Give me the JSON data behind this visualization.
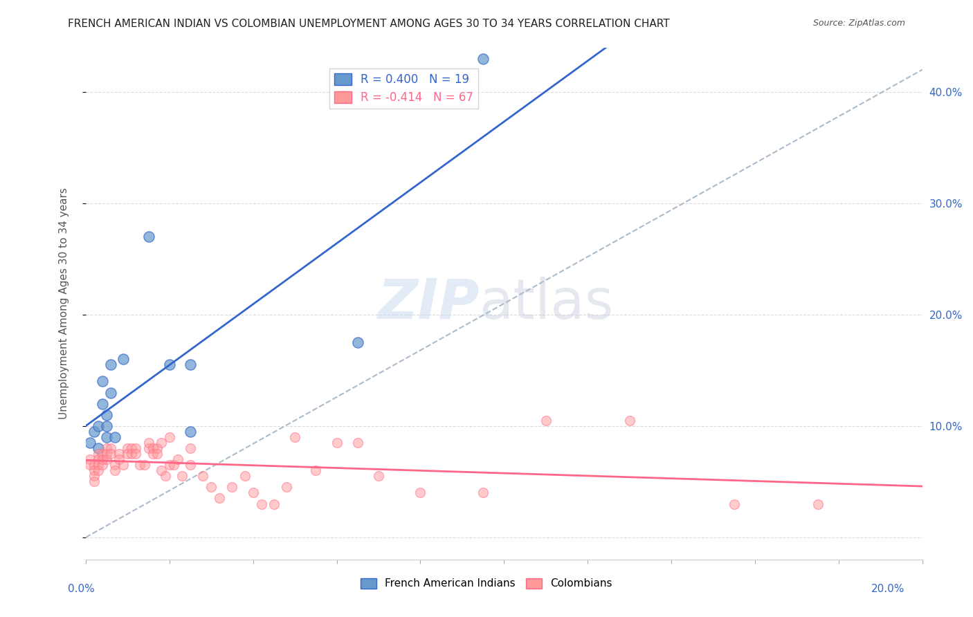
{
  "title": "FRENCH AMERICAN INDIAN VS COLOMBIAN UNEMPLOYMENT AMONG AGES 30 TO 34 YEARS CORRELATION CHART",
  "source": "Source: ZipAtlas.com",
  "ylabel": "Unemployment Among Ages 30 to 34 years",
  "legend1_label": "French American Indians",
  "legend2_label": "Colombians",
  "R_blue": 0.4,
  "N_blue": 19,
  "R_pink": -0.414,
  "N_pink": 67,
  "blue_color": "#6699CC",
  "pink_color": "#FF9999",
  "blue_line_color": "#3366CC",
  "pink_line_color": "#FF6688",
  "dashed_line_color": "#AABBCC",
  "watermark_zip": "ZIP",
  "watermark_atlas": "atlas",
  "xlim": [
    0.0,
    0.2
  ],
  "ylim": [
    -0.02,
    0.44
  ],
  "blue_x": [
    0.001,
    0.002,
    0.003,
    0.003,
    0.004,
    0.004,
    0.005,
    0.005,
    0.005,
    0.006,
    0.006,
    0.007,
    0.009,
    0.015,
    0.02,
    0.025,
    0.025,
    0.065,
    0.095
  ],
  "blue_y": [
    0.085,
    0.095,
    0.08,
    0.1,
    0.12,
    0.14,
    0.09,
    0.1,
    0.11,
    0.13,
    0.155,
    0.09,
    0.16,
    0.27,
    0.155,
    0.155,
    0.095,
    0.175,
    0.43
  ],
  "pink_x": [
    0.001,
    0.001,
    0.002,
    0.002,
    0.002,
    0.002,
    0.003,
    0.003,
    0.003,
    0.003,
    0.004,
    0.004,
    0.004,
    0.005,
    0.005,
    0.005,
    0.006,
    0.006,
    0.007,
    0.007,
    0.008,
    0.008,
    0.009,
    0.01,
    0.01,
    0.011,
    0.011,
    0.012,
    0.012,
    0.013,
    0.014,
    0.015,
    0.015,
    0.016,
    0.016,
    0.017,
    0.017,
    0.018,
    0.018,
    0.019,
    0.02,
    0.02,
    0.021,
    0.022,
    0.023,
    0.025,
    0.025,
    0.028,
    0.03,
    0.032,
    0.035,
    0.038,
    0.04,
    0.042,
    0.045,
    0.048,
    0.05,
    0.055,
    0.06,
    0.065,
    0.07,
    0.08,
    0.095,
    0.11,
    0.13,
    0.155,
    0.175
  ],
  "pink_y": [
    0.07,
    0.065,
    0.065,
    0.06,
    0.055,
    0.05,
    0.075,
    0.07,
    0.065,
    0.06,
    0.075,
    0.07,
    0.065,
    0.08,
    0.075,
    0.07,
    0.08,
    0.075,
    0.065,
    0.06,
    0.075,
    0.07,
    0.065,
    0.08,
    0.075,
    0.08,
    0.075,
    0.08,
    0.075,
    0.065,
    0.065,
    0.08,
    0.085,
    0.08,
    0.075,
    0.08,
    0.075,
    0.085,
    0.06,
    0.055,
    0.09,
    0.065,
    0.065,
    0.07,
    0.055,
    0.08,
    0.065,
    0.055,
    0.045,
    0.035,
    0.045,
    0.055,
    0.04,
    0.03,
    0.03,
    0.045,
    0.09,
    0.06,
    0.085,
    0.085,
    0.055,
    0.04,
    0.04,
    0.105,
    0.105,
    0.03,
    0.03
  ]
}
